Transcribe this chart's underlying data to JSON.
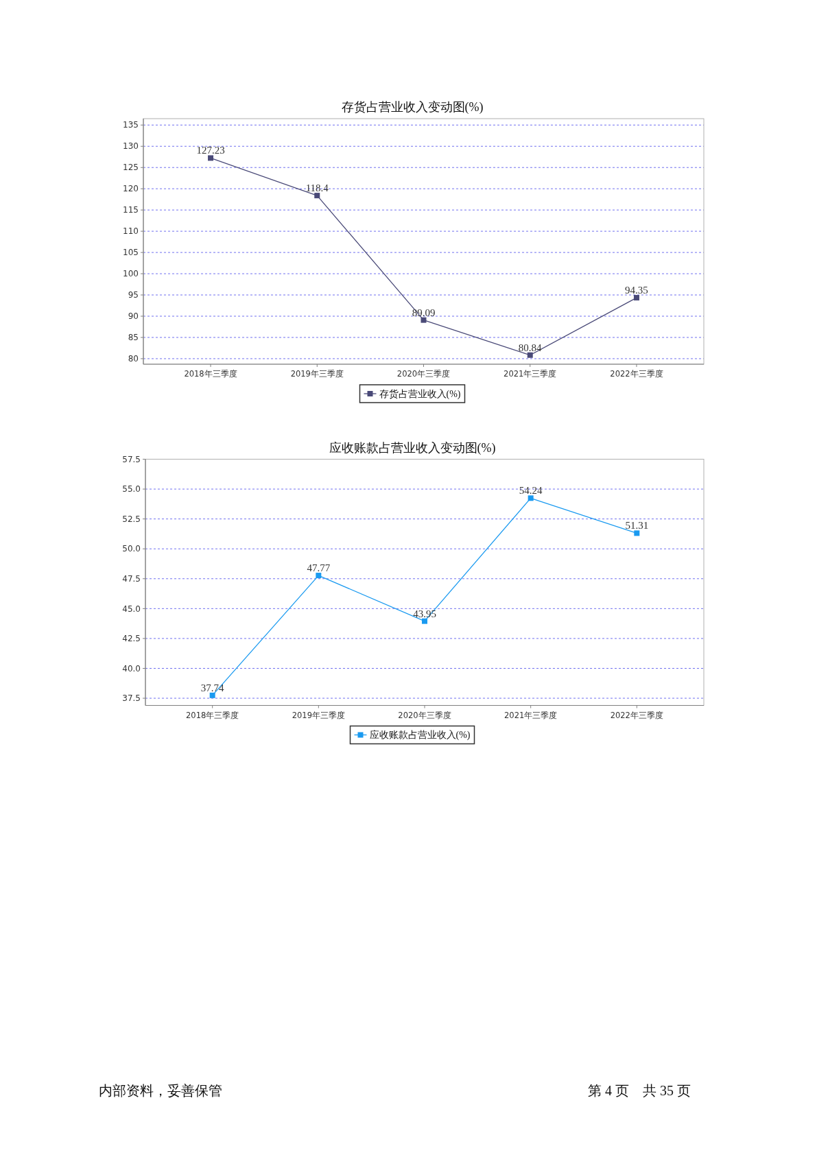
{
  "chart_data": [
    {
      "type": "line",
      "title": "存货占营业收入变动图(%)",
      "categories": [
        "2018年三季度",
        "2019年三季度",
        "2020年三季度",
        "2021年三季度",
        "2022年三季度"
      ],
      "series": [
        {
          "name": "存货占营业收入(%)",
          "color": "#4a4a78",
          "values": [
            127.23,
            118.4,
            89.09,
            80.84,
            94.35
          ]
        }
      ],
      "ylim": [
        78.7,
        136.5
      ],
      "yticks": [
        80,
        85,
        90,
        95,
        100,
        105,
        110,
        115,
        120,
        125,
        130,
        135
      ],
      "grid": "y",
      "legend": "bottom",
      "marker": "square",
      "line_style": "solid",
      "data_labels": true
    },
    {
      "type": "line",
      "title": "应收账款占营业收入变动图(%)",
      "categories": [
        "2018年三季度",
        "2019年三季度",
        "2020年三季度",
        "2021年三季度",
        "2022年三季度"
      ],
      "series": [
        {
          "name": "应收账款占营业收入(%)",
          "color": "#1a9af0",
          "values": [
            37.74,
            47.77,
            43.95,
            54.24,
            51.31
          ]
        }
      ],
      "ylim": [
        36.9,
        57.5
      ],
      "yticks": [
        37.5,
        {
          "value": 40,
          "label": "40.0"
        },
        42.5,
        {
          "value": 45,
          "label": "45.0"
        },
        47.5,
        {
          "value": 50,
          "label": "50.0"
        },
        52.5,
        {
          "value": 55,
          "label": "55.0"
        },
        57.5
      ],
      "grid": "y",
      "legend": "bottom",
      "marker": "square",
      "line_style": "solid",
      "data_labels": true,
      "annotations": [
        "内部资料，妥善保管",
        "第 4 页　共 35 页"
      ]
    }
  ]
}
